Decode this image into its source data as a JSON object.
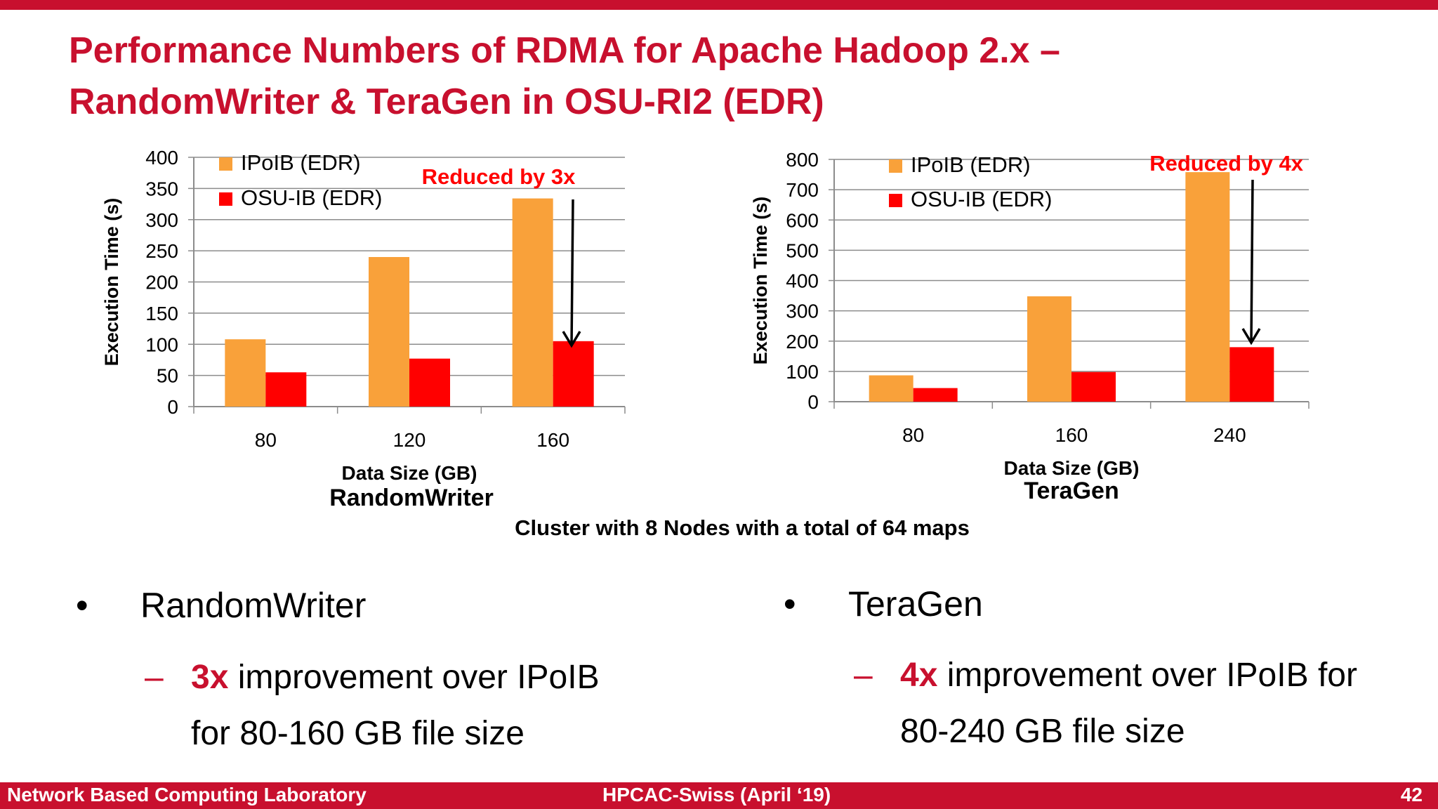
{
  "title": {
    "line1": "Performance Numbers of RDMA for Apache Hadoop 2.x –",
    "line2": "RandomWriter & TeraGen in OSU-RI2 (EDR)"
  },
  "colors": {
    "accent": "#c8102e",
    "ipoib": "#f9a13a",
    "osu_ib": "#ff0000"
  },
  "chart_data": [
    {
      "type": "bar",
      "title": "RandomWriter",
      "xlabel": "Data Size (GB)",
      "ylabel": "Execution Time (s)",
      "categories": [
        "80",
        "120",
        "160"
      ],
      "series": [
        {
          "name": "IPoIB (EDR)",
          "values": [
            108,
            240,
            334
          ]
        },
        {
          "name": "OSU-IB (EDR)",
          "values": [
            55,
            77,
            105
          ]
        }
      ],
      "ylim": [
        0,
        400
      ],
      "yticks": [
        0,
        50,
        100,
        150,
        200,
        250,
        300,
        350,
        400
      ],
      "grid": true,
      "legend": "top-left",
      "annotation": "Reduced by 3x"
    },
    {
      "type": "bar",
      "title": "TeraGen",
      "xlabel": "Data Size (GB)",
      "ylabel": "Execution Time (s)",
      "categories": [
        "80",
        "160",
        "240"
      ],
      "series": [
        {
          "name": "IPoIB (EDR)",
          "values": [
            87,
            348,
            758
          ]
        },
        {
          "name": "OSU-IB (EDR)",
          "values": [
            45,
            98,
            180
          ]
        }
      ],
      "ylim": [
        0,
        800
      ],
      "yticks": [
        0,
        100,
        200,
        300,
        400,
        500,
        600,
        700,
        800
      ],
      "grid": true,
      "legend": "top-left",
      "annotation": "Reduced by 4x"
    }
  ],
  "cluster_note": "Cluster with 8 Nodes with a total of 64 maps",
  "bullets": [
    {
      "symbol": "•",
      "label": "RandomWriter",
      "dash": "–",
      "highlight": "3x",
      "text1": " improvement over IPoIB",
      "text2": "for 80-160 GB file size"
    },
    {
      "symbol": "•",
      "label": "TeraGen",
      "dash": "–",
      "highlight": "4x",
      "text1": " improvement over IPoIB for",
      "text2": "80-240 GB file size"
    }
  ],
  "footer": {
    "left": "Network Based Computing Laboratory",
    "center": "HPCAC-Swiss (April ‘19)",
    "right": "42"
  }
}
